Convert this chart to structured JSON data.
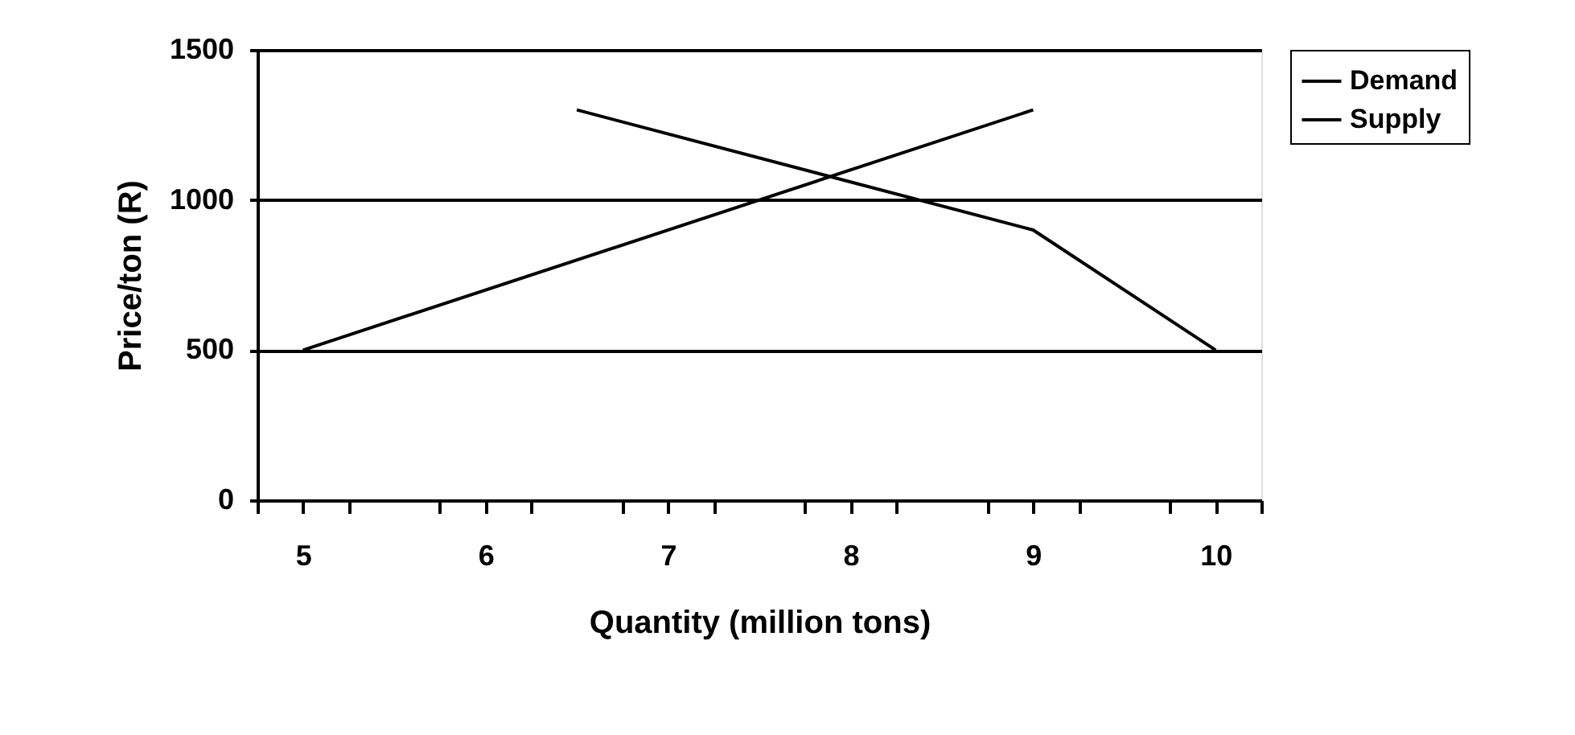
{
  "chart_data": {
    "type": "line",
    "xlabel": "Quantity (million tons)",
    "ylabel": "Price/ton (R)",
    "xlim": [
      4.75,
      10.25
    ],
    "xticks": [
      {
        "value": 4.75,
        "label": null
      },
      5,
      {
        "value": 5.25,
        "label": null
      },
      {
        "value": 5.75,
        "label": null
      },
      6,
      {
        "value": 6.25,
        "label": null
      },
      {
        "value": 6.75,
        "label": null
      },
      7,
      {
        "value": 7.25,
        "label": null
      },
      {
        "value": 7.75,
        "label": null
      },
      8,
      {
        "value": 8.25,
        "label": null
      },
      {
        "value": 8.75,
        "label": null
      },
      9,
      {
        "value": 9.25,
        "label": null
      },
      {
        "value": 9.75,
        "label": null
      },
      10,
      {
        "value": 10.25,
        "label": null
      }
    ],
    "ylim": [
      0,
      1500
    ],
    "yticks": [
      0,
      500,
      1000,
      1500
    ],
    "grid": "y",
    "legend": "right",
    "line_style": "solid",
    "marker": "none",
    "series": [
      {
        "name": "Demand",
        "color": "#000000",
        "x": [
          6.5,
          9,
          10
        ],
        "values": [
          1300,
          900,
          500
        ]
      },
      {
        "name": "Supply",
        "color": "#000000",
        "x": [
          5,
          9
        ],
        "values": [
          500,
          1300
        ]
      }
    ]
  }
}
